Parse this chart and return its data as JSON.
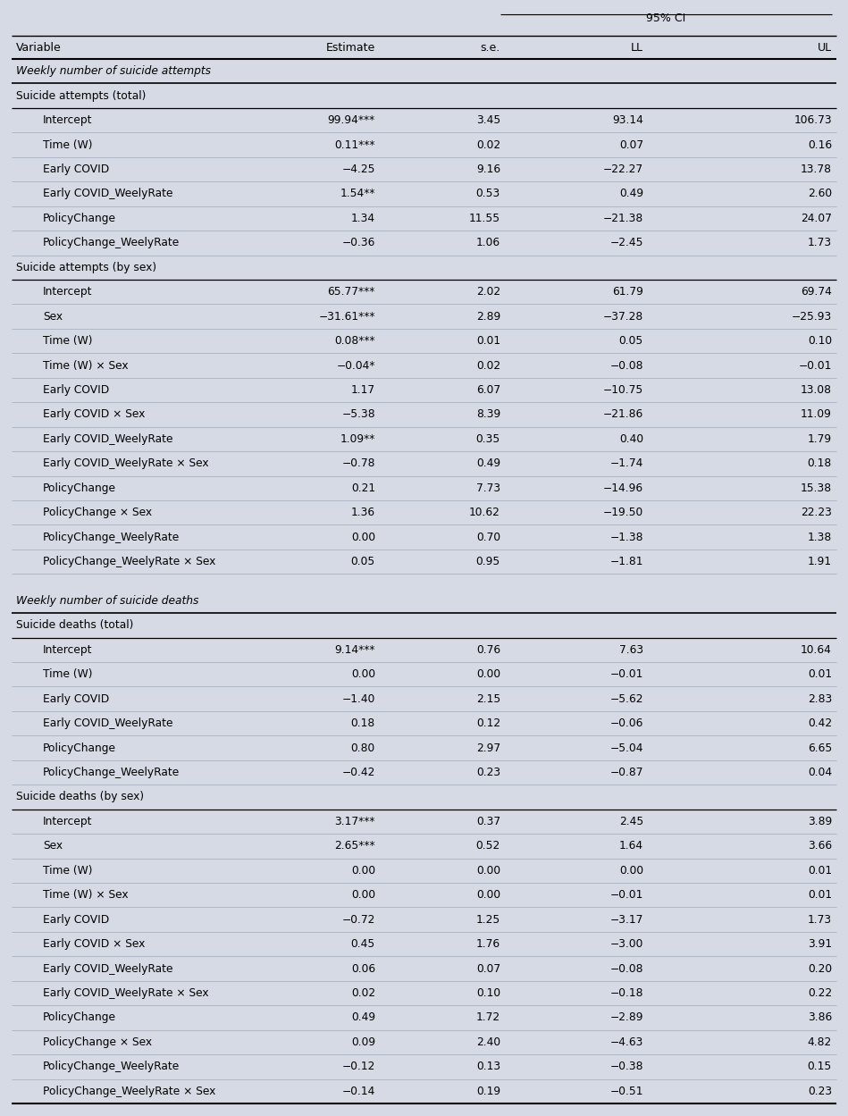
{
  "bg_color": "#d6dae4",
  "row_bg_light": "#e8eaf0",
  "row_bg_white": "#f0f2f6",
  "header_bg": "#d6dae4",
  "ci_header": "95% CI",
  "header_row": [
    "Variable",
    "Estimate",
    "s.e.",
    "LL",
    "UL"
  ],
  "sections": [
    {
      "type": "section_italic",
      "label": "Weekly number of suicide attempts"
    },
    {
      "type": "subsection",
      "label": "Suicide attempts (total)"
    },
    {
      "type": "data",
      "variable": "Intercept",
      "estimate": "99.94***",
      "se": "3.45",
      "ll": "93.14",
      "ul": "106.73"
    },
    {
      "type": "data",
      "variable": "Time (W)",
      "estimate": "0.11***",
      "se": "0.02",
      "ll": "0.07",
      "ul": "0.16"
    },
    {
      "type": "data",
      "variable": "Early COVID",
      "estimate": "−4.25",
      "se": "9.16",
      "ll": "−22.27",
      "ul": "13.78"
    },
    {
      "type": "data",
      "variable": "Early COVID_WeelyRate",
      "estimate": "1.54**",
      "se": "0.53",
      "ll": "0.49",
      "ul": "2.60"
    },
    {
      "type": "data",
      "variable": "PolicyChange",
      "estimate": "1.34",
      "se": "11.55",
      "ll": "−21.38",
      "ul": "24.07"
    },
    {
      "type": "data",
      "variable": "PolicyChange_WeelyRate",
      "estimate": "−0.36",
      "se": "1.06",
      "ll": "−2.45",
      "ul": "1.73"
    },
    {
      "type": "subsection",
      "label": "Suicide attempts (by sex)"
    },
    {
      "type": "data",
      "variable": "Intercept",
      "estimate": "65.77***",
      "se": "2.02",
      "ll": "61.79",
      "ul": "69.74"
    },
    {
      "type": "data",
      "variable": "Sex",
      "estimate": "−31.61***",
      "se": "2.89",
      "ll": "−37.28",
      "ul": "−25.93"
    },
    {
      "type": "data",
      "variable": "Time (W)",
      "estimate": "0.08***",
      "se": "0.01",
      "ll": "0.05",
      "ul": "0.10"
    },
    {
      "type": "data",
      "variable": "Time (W) × Sex",
      "estimate": "−0.04*",
      "se": "0.02",
      "ll": "−0.08",
      "ul": "−0.01"
    },
    {
      "type": "data",
      "variable": "Early COVID",
      "estimate": "1.17",
      "se": "6.07",
      "ll": "−10.75",
      "ul": "13.08"
    },
    {
      "type": "data",
      "variable": "Early COVID × Sex",
      "estimate": "−5.38",
      "se": "8.39",
      "ll": "−21.86",
      "ul": "11.09"
    },
    {
      "type": "data",
      "variable": "Early COVID_WeelyRate",
      "estimate": "1.09**",
      "se": "0.35",
      "ll": "0.40",
      "ul": "1.79"
    },
    {
      "type": "data",
      "variable": "Early COVID_WeelyRate × Sex",
      "estimate": "−0.78",
      "se": "0.49",
      "ll": "−1.74",
      "ul": "0.18"
    },
    {
      "type": "data",
      "variable": "PolicyChange",
      "estimate": "0.21",
      "se": "7.73",
      "ll": "−14.96",
      "ul": "15.38"
    },
    {
      "type": "data",
      "variable": "PolicyChange × Sex",
      "estimate": "1.36",
      "se": "10.62",
      "ll": "−19.50",
      "ul": "22.23"
    },
    {
      "type": "data",
      "variable": "PolicyChange_WeelyRate",
      "estimate": "0.00",
      "se": "0.70",
      "ll": "−1.38",
      "ul": "1.38"
    },
    {
      "type": "data",
      "variable": "PolicyChange_WeelyRate × Sex",
      "estimate": "0.05",
      "se": "0.95",
      "ll": "−1.81",
      "ul": "1.91"
    },
    {
      "type": "blank"
    },
    {
      "type": "section_italic",
      "label": "Weekly number of suicide deaths"
    },
    {
      "type": "subsection",
      "label": "Suicide deaths (total)"
    },
    {
      "type": "data",
      "variable": "Intercept",
      "estimate": "9.14***",
      "se": "0.76",
      "ll": "7.63",
      "ul": "10.64"
    },
    {
      "type": "data",
      "variable": "Time (W)",
      "estimate": "0.00",
      "se": "0.00",
      "ll": "−0.01",
      "ul": "0.01"
    },
    {
      "type": "data",
      "variable": "Early COVID",
      "estimate": "−1.40",
      "se": "2.15",
      "ll": "−5.62",
      "ul": "2.83"
    },
    {
      "type": "data",
      "variable": "Early COVID_WeelyRate",
      "estimate": "0.18",
      "se": "0.12",
      "ll": "−0.06",
      "ul": "0.42"
    },
    {
      "type": "data",
      "variable": "PolicyChange",
      "estimate": "0.80",
      "se": "2.97",
      "ll": "−5.04",
      "ul": "6.65"
    },
    {
      "type": "data",
      "variable": "PolicyChange_WeelyRate",
      "estimate": "−0.42",
      "se": "0.23",
      "ll": "−0.87",
      "ul": "0.04"
    },
    {
      "type": "subsection",
      "label": "Suicide deaths (by sex)"
    },
    {
      "type": "data",
      "variable": "Intercept",
      "estimate": "3.17***",
      "se": "0.37",
      "ll": "2.45",
      "ul": "3.89"
    },
    {
      "type": "data",
      "variable": "Sex",
      "estimate": "2.65***",
      "se": "0.52",
      "ll": "1.64",
      "ul": "3.66"
    },
    {
      "type": "data",
      "variable": "Time (W)",
      "estimate": "0.00",
      "se": "0.00",
      "ll": "0.00",
      "ul": "0.01"
    },
    {
      "type": "data",
      "variable": "Time (W) × Sex",
      "estimate": "0.00",
      "se": "0.00",
      "ll": "−0.01",
      "ul": "0.01"
    },
    {
      "type": "data",
      "variable": "Early COVID",
      "estimate": "−0.72",
      "se": "1.25",
      "ll": "−3.17",
      "ul": "1.73"
    },
    {
      "type": "data",
      "variable": "Early COVID × Sex",
      "estimate": "0.45",
      "se": "1.76",
      "ll": "−3.00",
      "ul": "3.91"
    },
    {
      "type": "data",
      "variable": "Early COVID_WeelyRate",
      "estimate": "0.06",
      "se": "0.07",
      "ll": "−0.08",
      "ul": "0.20"
    },
    {
      "type": "data",
      "variable": "Early COVID_WeelyRate × Sex",
      "estimate": "0.02",
      "se": "0.10",
      "ll": "−0.18",
      "ul": "0.22"
    },
    {
      "type": "data",
      "variable": "PolicyChange",
      "estimate": "0.49",
      "se": "1.72",
      "ll": "−2.89",
      "ul": "3.86"
    },
    {
      "type": "data",
      "variable": "PolicyChange × Sex",
      "estimate": "0.09",
      "se": "2.40",
      "ll": "−4.63",
      "ul": "4.82"
    },
    {
      "type": "data",
      "variable": "PolicyChange_WeelyRate",
      "estimate": "−0.12",
      "se": "0.13",
      "ll": "−0.38",
      "ul": "0.15"
    },
    {
      "type": "data",
      "variable": "PolicyChange_WeelyRate × Sex",
      "estimate": "−0.14",
      "se": "0.19",
      "ll": "−0.51",
      "ul": "0.23"
    }
  ]
}
